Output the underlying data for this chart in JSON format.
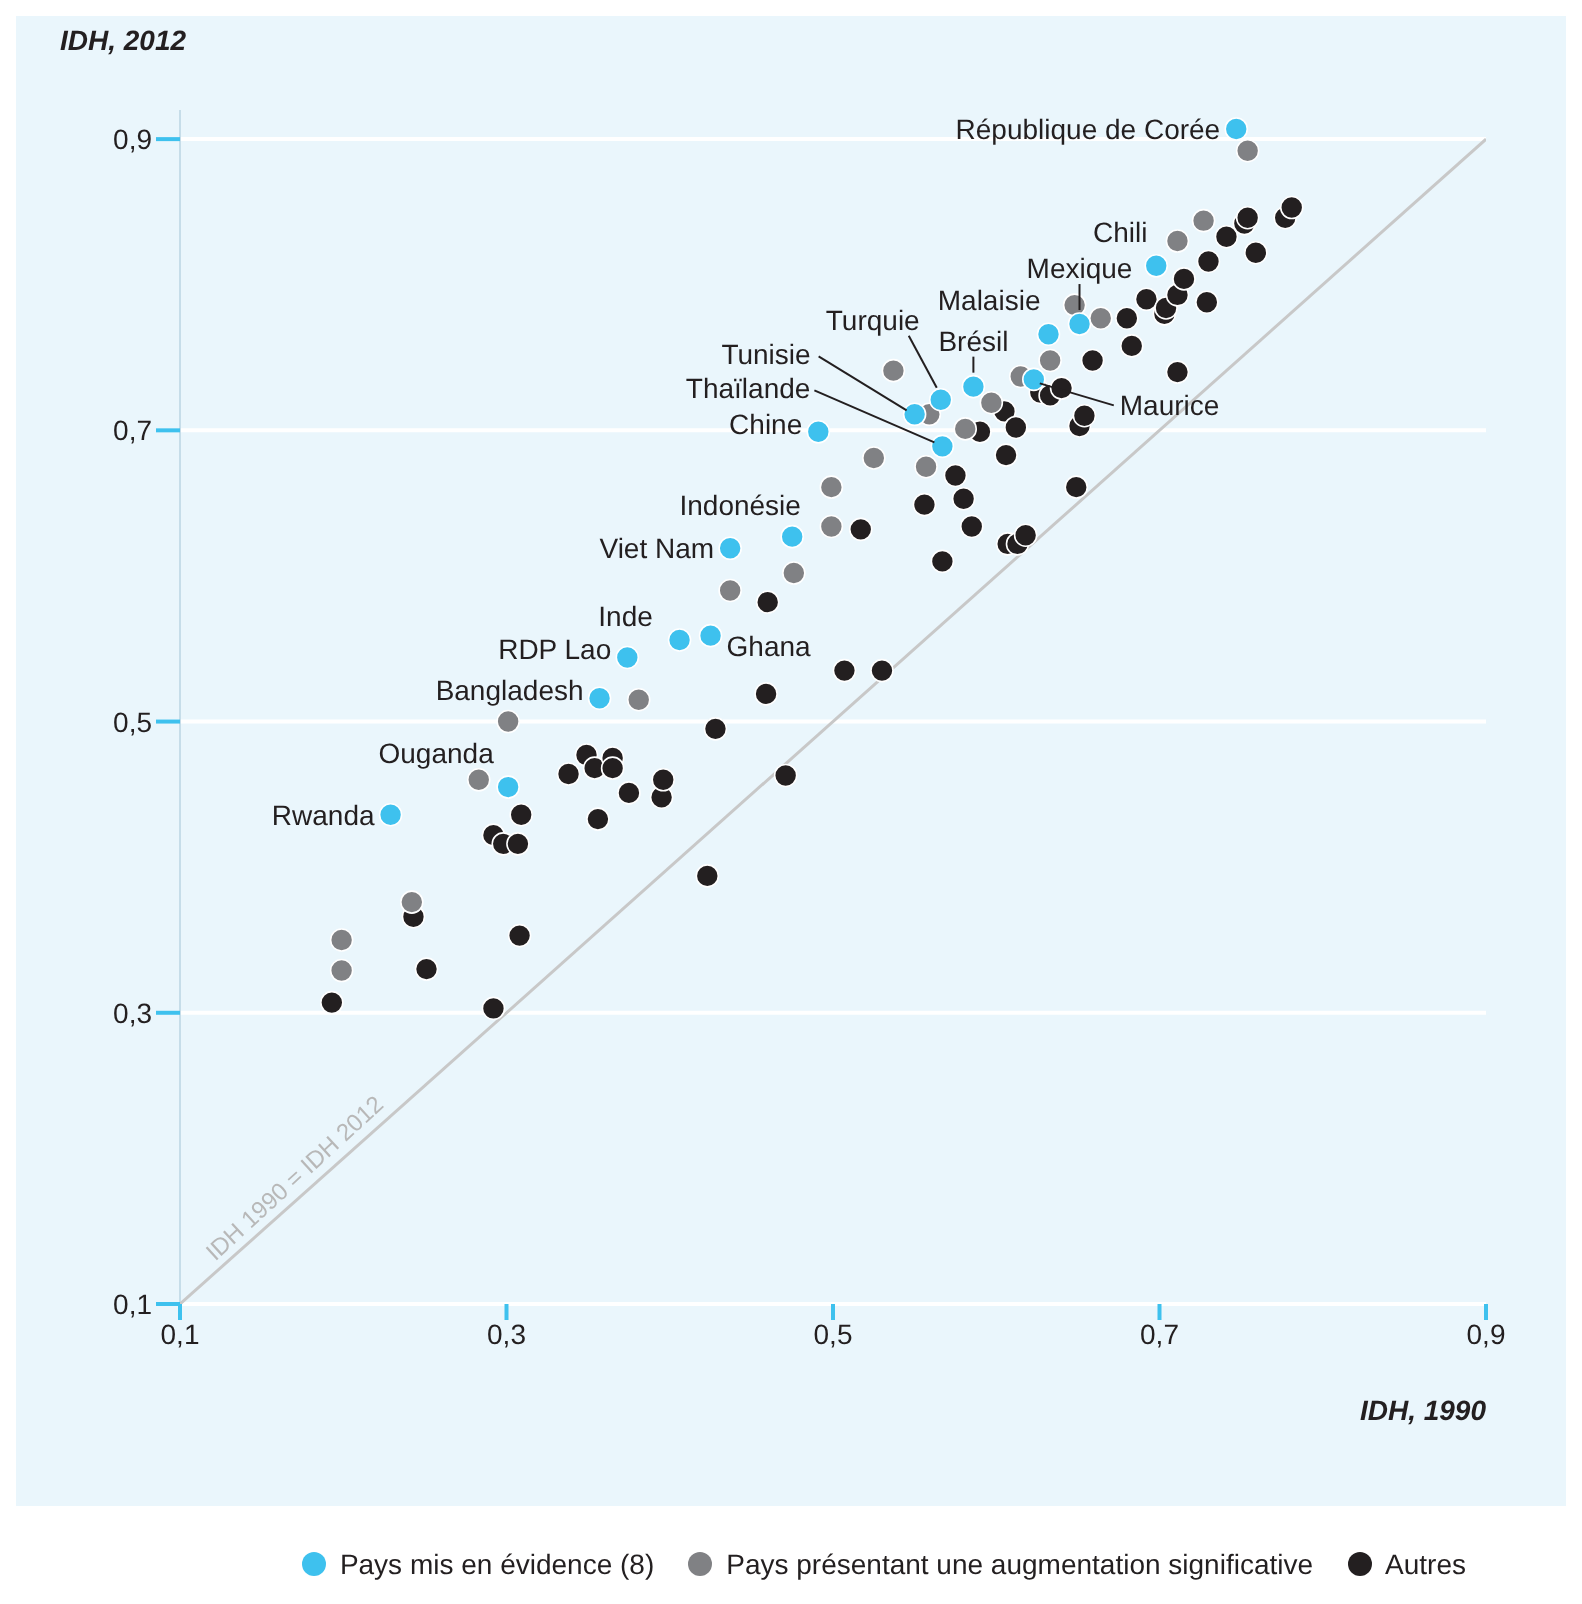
{
  "chart_data": {
    "type": "scatter",
    "xlabel": "IDH, 1990",
    "ylabel": "IDH, 2012",
    "xlim": [
      0.1,
      0.9
    ],
    "ylim": [
      0.1,
      0.92
    ],
    "xticks": [
      {
        "value": 0.1,
        "label": "0,1"
      },
      {
        "value": 0.3,
        "label": "0,3"
      },
      {
        "value": 0.5,
        "label": "0,5"
      },
      {
        "value": 0.7,
        "label": "0,7"
      },
      {
        "value": 0.9,
        "label": "0,9"
      }
    ],
    "yticks": [
      {
        "value": 0.1,
        "label": "0,1"
      },
      {
        "value": 0.3,
        "label": "0,3"
      },
      {
        "value": 0.5,
        "label": "0,5"
      },
      {
        "value": 0.7,
        "label": "0,7"
      },
      {
        "value": 0.9,
        "label": "0,9"
      }
    ],
    "grid": "y",
    "legend": "bottom right",
    "marker": "circle",
    "series": [
      {
        "type": "line",
        "marker": "none",
        "color": "#c8c8c8",
        "x": [
          0.1,
          0.9
        ],
        "values": [
          0.1,
          0.9
        ]
      },
      {
        "name": "Autres",
        "color": "#231f20",
        "x": [
          0.193,
          0.243,
          0.251,
          0.292,
          0.292,
          0.298,
          0.307,
          0.308,
          0.309,
          0.338,
          0.349,
          0.354,
          0.356,
          0.365,
          0.365,
          0.375,
          0.395,
          0.396,
          0.423,
          0.428,
          0.459,
          0.46,
          0.471,
          0.507,
          0.517,
          0.53,
          0.556,
          0.567,
          0.575,
          0.58,
          0.585,
          0.59,
          0.605,
          0.606,
          0.607,
          0.612,
          0.613,
          0.618,
          0.627,
          0.633,
          0.64,
          0.649,
          0.651,
          0.654,
          0.659,
          0.68,
          0.683,
          0.692,
          0.703,
          0.704,
          0.711,
          0.711,
          0.715,
          0.729,
          0.73,
          0.741,
          0.752,
          0.754,
          0.759,
          0.777,
          0.781
        ],
        "values": [
          0.307,
          0.366,
          0.33,
          0.303,
          0.422,
          0.416,
          0.416,
          0.353,
          0.436,
          0.464,
          0.477,
          0.468,
          0.433,
          0.475,
          0.468,
          0.451,
          0.448,
          0.46,
          0.394,
          0.495,
          0.519,
          0.582,
          0.463,
          0.535,
          0.632,
          0.535,
          0.649,
          0.61,
          0.669,
          0.653,
          0.634,
          0.699,
          0.713,
          0.683,
          0.622,
          0.702,
          0.622,
          0.628,
          0.726,
          0.724,
          0.729,
          0.661,
          0.703,
          0.71,
          0.748,
          0.777,
          0.758,
          0.79,
          0.78,
          0.784,
          0.74,
          0.793,
          0.804,
          0.788,
          0.816,
          0.833,
          0.842,
          0.846,
          0.822,
          0.846,
          0.853
        ]
      },
      {
        "name": "Pays présentant une augmentation significative",
        "color": "#808184",
        "x": [
          0.199,
          0.199,
          0.242,
          0.283,
          0.301,
          0.381,
          0.437,
          0.476,
          0.499,
          0.499,
          0.525,
          0.537,
          0.557,
          0.559,
          0.581,
          0.597,
          0.615,
          0.633,
          0.648,
          0.664,
          0.711,
          0.727,
          0.754
        ],
        "values": [
          0.329,
          0.35,
          0.376,
          0.46,
          0.5,
          0.515,
          0.59,
          0.602,
          0.634,
          0.661,
          0.681,
          0.741,
          0.675,
          0.711,
          0.701,
          0.719,
          0.737,
          0.748,
          0.786,
          0.777,
          0.83,
          0.844,
          0.892
        ]
      },
      {
        "name": "Pays mis en évidence (8)",
        "color": "#3ec1ee",
        "x": [
          0.229,
          0.301,
          0.357,
          0.374,
          0.406,
          0.425,
          0.437,
          0.475,
          0.491,
          0.567,
          0.55,
          0.566,
          0.586,
          0.623,
          0.632,
          0.651,
          0.698,
          0.747
        ],
        "values": [
          0.436,
          0.455,
          0.516,
          0.544,
          0.556,
          0.559,
          0.619,
          0.627,
          0.699,
          0.689,
          0.711,
          0.721,
          0.73,
          0.735,
          0.766,
          0.773,
          0.813,
          0.907
        ]
      }
    ],
    "annotations": [
      {
        "text": "Rwanda",
        "x": 0.229,
        "y": 0.436
      },
      {
        "text": "Ouganda",
        "x": 0.301,
        "y": 0.455
      },
      {
        "text": "Bangladesh",
        "x": 0.357,
        "y": 0.516
      },
      {
        "text": "RDP Lao",
        "x": 0.374,
        "y": 0.544
      },
      {
        "text": "Inde",
        "x": 0.406,
        "y": 0.556
      },
      {
        "text": "Ghana",
        "x": 0.425,
        "y": 0.559
      },
      {
        "text": "Viet Nam",
        "x": 0.437,
        "y": 0.619
      },
      {
        "text": "Indonésie",
        "x": 0.475,
        "y": 0.627
      },
      {
        "text": "Chine",
        "x": 0.491,
        "y": 0.699
      },
      {
        "text": "Thaïlande",
        "x": 0.567,
        "y": 0.689
      },
      {
        "text": "Tunisie",
        "x": 0.55,
        "y": 0.711
      },
      {
        "text": "Turquie",
        "x": 0.566,
        "y": 0.721
      },
      {
        "text": "Brésil",
        "x": 0.586,
        "y": 0.73
      },
      {
        "text": "Maurice",
        "x": 0.623,
        "y": 0.735
      },
      {
        "text": "Malaisie",
        "x": 0.632,
        "y": 0.766
      },
      {
        "text": "Mexique",
        "x": 0.651,
        "y": 0.773
      },
      {
        "text": "Chili",
        "x": 0.698,
        "y": 0.813
      },
      {
        "text": "République de Corée",
        "x": 0.747,
        "y": 0.907
      },
      "IDH 1990 = IDH 2012"
    ]
  }
}
